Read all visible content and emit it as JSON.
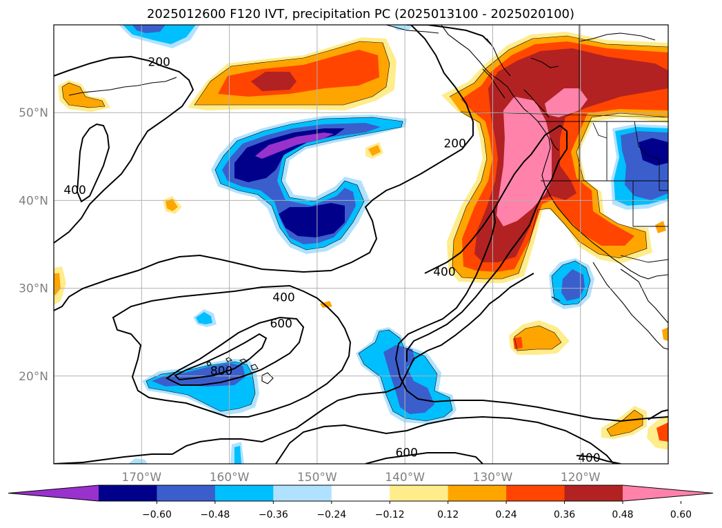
{
  "title": "2025012600 F120 IVT, precipitation PC (2025013100 - 2025020100)",
  "map": {
    "lon_range": [
      -180,
      -110
    ],
    "lat_range": [
      10,
      60
    ],
    "gridlines": true,
    "lat_labels": [
      "50°N",
      "40°N",
      "30°N",
      "20°N"
    ],
    "lat_values": [
      50,
      40,
      30,
      20
    ],
    "lon_labels": [
      "170°W",
      "160°W",
      "150°W",
      "140°W",
      "130°W",
      "120°W"
    ],
    "lon_values": [
      -170,
      -160,
      -150,
      -140,
      -130,
      -120
    ]
  },
  "ivt_contours": {
    "levels": [
      200,
      400,
      600,
      800
    ],
    "labels": [
      {
        "text": "200",
        "lon": -168,
        "lat": 55.8
      },
      {
        "text": "200",
        "lon": -134.3,
        "lat": 46.5
      },
      {
        "text": "400",
        "lon": -177.6,
        "lat": 41.2
      },
      {
        "text": "400",
        "lon": -135.5,
        "lat": 31.9
      },
      {
        "text": "400",
        "lon": -153.8,
        "lat": 29.0
      },
      {
        "text": "400",
        "lon": -119,
        "lat": 10.7
      },
      {
        "text": "600",
        "lon": -154.1,
        "lat": 26.0
      },
      {
        "text": "600",
        "lon": -139.8,
        "lat": 11.3
      },
      {
        "text": "800",
        "lon": -160.9,
        "lat": 20.6
      }
    ]
  },
  "colorbar": {
    "tick_labels": [
      "−0.60",
      "−0.48",
      "−0.36",
      "−0.24",
      "−0.12",
      "0.12",
      "0.24",
      "0.36",
      "0.48",
      "0.60"
    ],
    "tick_values": [
      -0.6,
      -0.48,
      -0.36,
      -0.24,
      -0.12,
      0.12,
      0.24,
      0.36,
      0.48,
      0.6
    ],
    "colors": [
      "#9932cc",
      "#00008b",
      "#3a5fcd",
      "#00bfff",
      "#b0e2ff",
      "#ffffff",
      "#ffec8b",
      "#ffa500",
      "#ff4500",
      "#b22222",
      "#ff82ab"
    ],
    "extend": "both"
  }
}
